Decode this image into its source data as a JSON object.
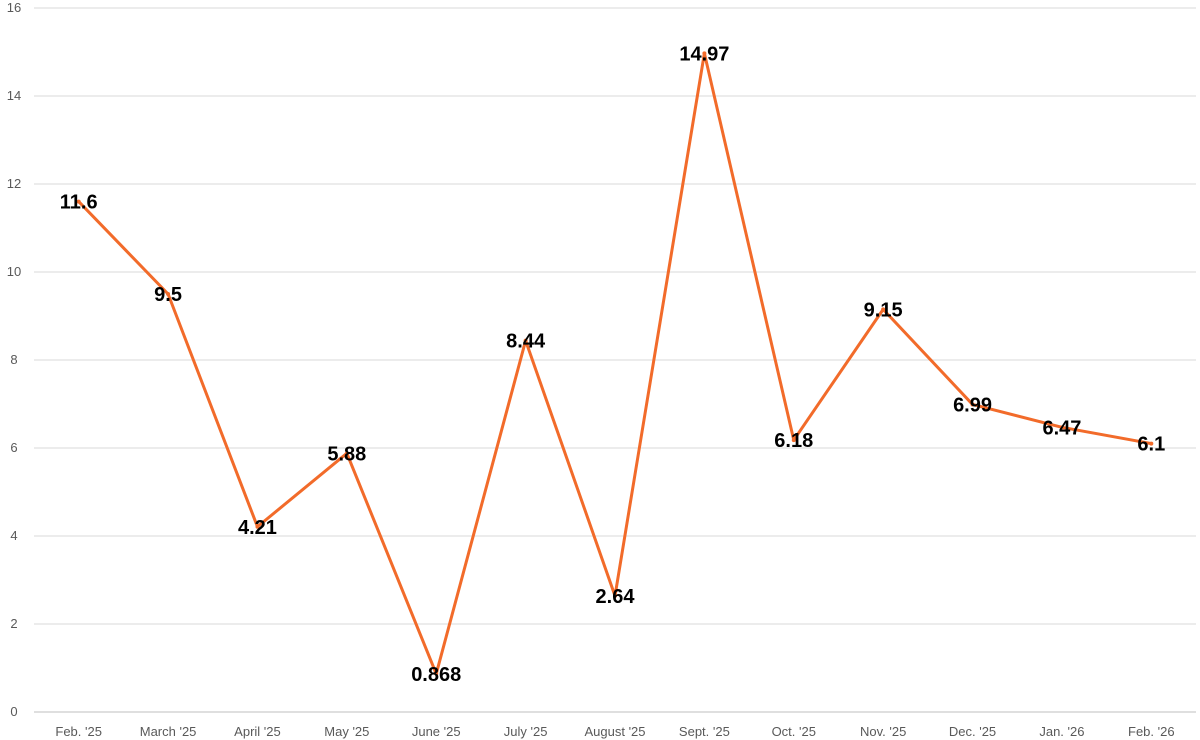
{
  "chart_data": {
    "type": "line",
    "title": "",
    "xlabel": "",
    "ylabel": "",
    "ylim": [
      0,
      16
    ],
    "y_ticks": [
      "0",
      "2",
      "4",
      "6",
      "8",
      "10",
      "12",
      "14",
      "16"
    ],
    "grid": true,
    "legend": "none",
    "categories": [
      "Feb. '25",
      "March '25",
      "April '25",
      "May '25",
      "June '25",
      "July '25",
      "August '25",
      "Sept. '25",
      "Oct. '25",
      "Nov. '25",
      "Dec. '25",
      "Jan. '26",
      "Feb. '26"
    ],
    "series": [
      {
        "values": [
          11.6,
          9.5,
          4.21,
          5.88,
          0.868,
          8.44,
          2.64,
          14.97,
          6.18,
          9.15,
          6.99,
          6.47,
          6.1
        ],
        "labels": [
          "11.6",
          "9.5",
          "4.21",
          "5.88",
          "0.868",
          "8.44",
          "2.64",
          "14.97",
          "6.18",
          "9.15",
          "6.99",
          "6.47",
          "6.1"
        ],
        "color": "#f26b2a"
      }
    ],
    "colors": {
      "grid": "#d9d9d9",
      "tick_text": "#595959",
      "data_label": "#000000"
    }
  }
}
